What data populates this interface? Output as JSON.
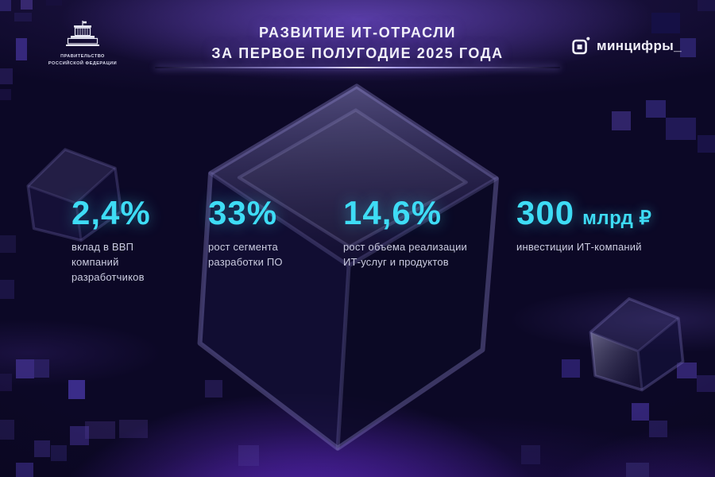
{
  "slide": {
    "title": "РАЗВИТИЕ ИТ-ОТРАСЛИ\nЗА ПЕРВОЕ ПОЛУГОДИЕ 2025 ГОДА",
    "government_emblem_caption": "ПРАВИТЕЛЬСТВО\nРОССИЙСКОЙ ФЕДЕРАЦИИ",
    "ministry_logo_text": "минцифры_"
  },
  "stats": [
    {
      "value": "2,4%",
      "unit": "",
      "label": "вклад в ВВП\nкомпаний\nразработчиков"
    },
    {
      "value": "33%",
      "unit": "",
      "label": "рост сегмента\nразработки ПО"
    },
    {
      "value": "14,6%",
      "unit": "",
      "label": "рост объема реализации\nИТ-услуг и продуктов"
    },
    {
      "value": "300",
      "unit": "млрд ₽",
      "label": "инвестиции ИТ-компаний"
    }
  ],
  "chart_data": {
    "type": "table",
    "title": "РАЗВИТИЕ ИТ-ОТРАСЛИ ЗА ПЕРВОЕ ПОЛУГОДИЕ 2025 ГОДА",
    "categories": [
      "вклад в ВВП компаний разработчиков",
      "рост сегмента разработки ПО",
      "рост объема реализации ИТ-услуг и продуктов",
      "инвестиции ИТ-компаний"
    ],
    "values": [
      "2,4%",
      "33%",
      "14,6%",
      "300 млрд ₽"
    ]
  },
  "colors": {
    "accent_cyan": "#3EDCF5",
    "background_navy": "#0C0826",
    "glow_purple": "#6A2FD8",
    "text_light": "#CBCCE0",
    "title_white": "#F3F2FB"
  }
}
